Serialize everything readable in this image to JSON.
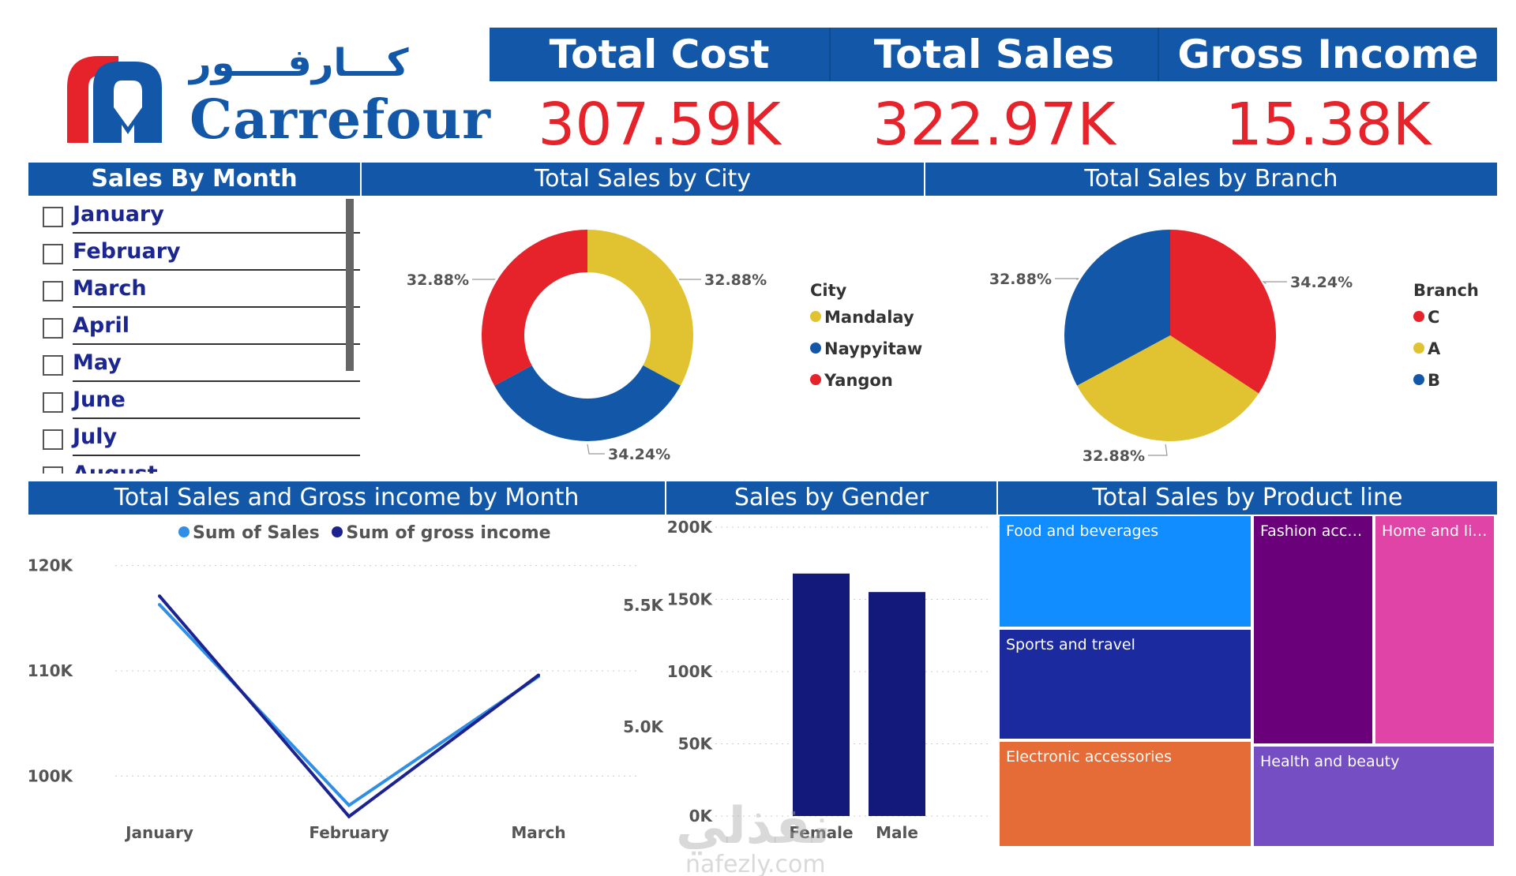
{
  "brand": {
    "name": "Carrefour",
    "arabic_name": "كـــارفــــور",
    "colors": {
      "blue": "#1358a8",
      "red": "#e6232a",
      "yellow": "#e1c332",
      "navy": "#13197a"
    }
  },
  "kpis": [
    {
      "label": "Total Cost",
      "value": "307.59K"
    },
    {
      "label": "Total Sales",
      "value": "322.97K"
    },
    {
      "label": "Gross Income",
      "value": "15.38K"
    }
  ],
  "slicer": {
    "title": "Sales By Month",
    "items": [
      "January",
      "February",
      "March",
      "April",
      "May",
      "June",
      "July",
      "August"
    ]
  },
  "chart_data": [
    {
      "type": "pie",
      "variant": "donut",
      "title": "Total Sales by City",
      "legend_title": "City",
      "legend_position": "right",
      "slices": [
        {
          "label": "Mandalay",
          "value": 32.88,
          "display": "32.88%",
          "color": "#e1c332"
        },
        {
          "label": "Naypyitaw",
          "value": 34.24,
          "display": "34.24%",
          "color": "#1358a8"
        },
        {
          "label": "Yangon",
          "value": 32.88,
          "display": "32.88%",
          "color": "#e6232a"
        }
      ]
    },
    {
      "type": "pie",
      "title": "Total Sales by Branch",
      "legend_title": "Branch",
      "legend_position": "right",
      "slices": [
        {
          "label": "C",
          "value": 34.24,
          "display": "34.24%",
          "color": "#e6232a"
        },
        {
          "label": "A",
          "value": 32.88,
          "display": "32.88%",
          "color": "#e1c332"
        },
        {
          "label": "B",
          "value": 32.88,
          "display": "32.88%",
          "color": "#1358a8"
        }
      ]
    },
    {
      "type": "line",
      "title": "Total Sales and Gross income by Month",
      "legend_position": "top",
      "categories": [
        "January",
        "February",
        "March"
      ],
      "series": [
        {
          "name": "Sum of Sales",
          "axis": "left",
          "color": "#2f8fe6",
          "values": [
            116292,
            97219,
            109456
          ]
        },
        {
          "name": "Sum of gross income",
          "axis": "right",
          "color": "#1c2391",
          "values": [
            5538,
            4630,
            5212
          ]
        }
      ],
      "y_left": {
        "ylim": [
          95000,
          122000
        ],
        "ticks": [
          100000,
          110000,
          120000
        ],
        "tick_labels": [
          "100K",
          "110K",
          "120K"
        ]
      },
      "y_right": {
        "ylim": [
          4580,
          5750
        ],
        "ticks": [
          5000,
          5500
        ],
        "tick_labels": [
          "5.0K",
          "5.5K"
        ]
      },
      "grid": true
    },
    {
      "type": "bar",
      "title": "Sales by Gender",
      "categories": [
        "Female",
        "Male"
      ],
      "values": [
        167883,
        155084
      ],
      "color": "#13197a",
      "ylim": [
        0,
        200000
      ],
      "ticks": [
        0,
        50000,
        100000,
        150000,
        200000
      ],
      "tick_labels": [
        "0K",
        "50K",
        "100K",
        "150K",
        "200K"
      ],
      "grid": true
    },
    {
      "type": "treemap",
      "title": "Total Sales by Product line",
      "items": [
        {
          "label": "Food and beverages",
          "value": 56145,
          "color": "#118dff"
        },
        {
          "label": "Sports and travel",
          "value": 55123,
          "color": "#1c2aa0"
        },
        {
          "label": "Electronic accessories",
          "value": 54338,
          "color": "#e66c37"
        },
        {
          "label": "Fashion acces...",
          "value": 54306,
          "color": "#6b007b"
        },
        {
          "label": "Home and life...",
          "value": 53862,
          "color": "#e044a7"
        },
        {
          "label": "Health and beauty",
          "value": 49194,
          "color": "#744ec2"
        }
      ]
    }
  ],
  "watermark": {
    "arabic": "نفذلي",
    "latin": "nafezly.com"
  }
}
